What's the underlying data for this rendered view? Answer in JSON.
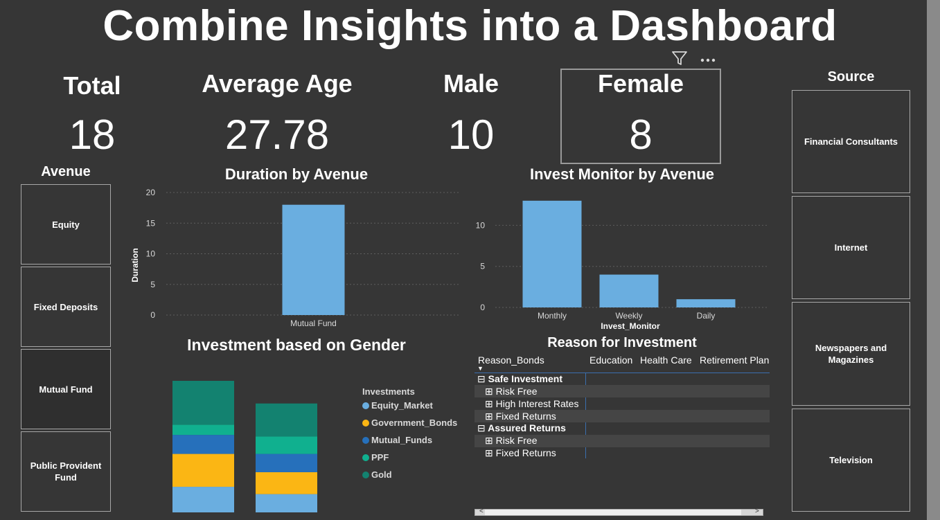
{
  "title": "Combine Insights into a Dashboard",
  "kpis": {
    "total": {
      "label": "Total",
      "value": "18"
    },
    "avg_age": {
      "label": "Average Age",
      "value": "27.78"
    },
    "male": {
      "label": "Male",
      "value": "10"
    },
    "female": {
      "label": "Female",
      "value": "8"
    }
  },
  "avenue_slicer": {
    "header": "Avenue",
    "items": [
      "Equity",
      "Fixed Deposits",
      "Mutual Fund",
      "Public Provident Fund"
    ]
  },
  "source_slicer": {
    "header": "Source",
    "items": [
      "Financial Consultants",
      "Internet",
      "Newspapers and Magazines",
      "Television"
    ]
  },
  "visual_header": {
    "icons": [
      "filter-icon",
      "more-options-icon"
    ]
  },
  "chart_data": [
    {
      "type": "bar",
      "title": "Duration by Avenue",
      "ylabel": "Duration",
      "xlabel": "",
      "categories": [
        "Mutual Fund"
      ],
      "values": [
        18
      ],
      "ylim": [
        0,
        20
      ],
      "yticks": [
        "0",
        "5",
        "10",
        "15",
        "20"
      ],
      "grid": true,
      "color": "#6aaee0"
    },
    {
      "type": "bar",
      "title": "Invest Monitor by Avenue",
      "xlabel": "Invest_Monitor",
      "ylabel": "",
      "categories": [
        "Monthly",
        "Weekly",
        "Daily"
      ],
      "values": [
        13,
        4,
        1
      ],
      "ylim": [
        0,
        14
      ],
      "yticks": [
        "0",
        "5",
        "10"
      ],
      "grid": true,
      "color": "#6aaee0"
    },
    {
      "type": "bar",
      "title": "Investment based on Gender",
      "stacked": true,
      "legend_title": "Investments",
      "legend_position": "right",
      "categories": [
        "",
        ""
      ],
      "series": [
        {
          "name": "Equity_Market",
          "color": "#6aaee0",
          "values": [
            3.5,
            2.5
          ]
        },
        {
          "name": "Government_Bonds",
          "color": "#fbb614",
          "values": [
            4.5,
            3
          ]
        },
        {
          "name": "Mutual_Funds",
          "color": "#2670bb",
          "values": [
            2.6,
            2.5
          ]
        },
        {
          "name": "PPF",
          "color": "#10b08f",
          "values": [
            1.4,
            2.4
          ]
        },
        {
          "name": "Gold",
          "color": "#138270",
          "values": [
            6,
            4.5
          ]
        }
      ],
      "ylim": [
        0,
        18
      ]
    }
  ],
  "matrix": {
    "title": "Reason for Investment",
    "row_header": "Reason_Bonds",
    "columns": [
      "Education",
      "Health Care",
      "Retirement Plan"
    ],
    "groups": [
      {
        "label": "Safe Investment",
        "children": [
          "Risk Free",
          "High Interest Rates",
          "Fixed Returns"
        ]
      },
      {
        "label": "Assured Returns",
        "children": [
          "Risk Free",
          "Fixed Returns"
        ]
      }
    ],
    "expand_glyph": "⊞",
    "collapse_glyph": "⊟",
    "sort_glyph": "▼",
    "scroll_left": "<",
    "scroll_right": ">"
  }
}
